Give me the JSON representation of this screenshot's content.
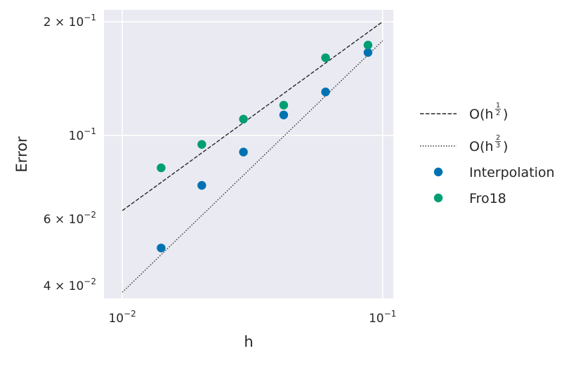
{
  "chart_data": {
    "type": "scatter",
    "xlabel": "h",
    "ylabel": "Error",
    "xscale": "log",
    "yscale": "log",
    "xlim": [
      0.0085,
      0.11
    ],
    "ylim": [
      0.037,
      0.215
    ],
    "grid": true,
    "legend_position": "outside-right",
    "x_ticks": [
      {
        "value": 0.01,
        "base": "10",
        "exp": "−2"
      },
      {
        "value": 0.1,
        "base": "10",
        "exp": "−1"
      }
    ],
    "y_ticks": [
      {
        "value": 0.2,
        "base": "2 × 10",
        "exp": "−1"
      },
      {
        "value": 0.1,
        "base": "10",
        "exp": "−1"
      },
      {
        "value": 0.06,
        "base": "6 × 10",
        "exp": "−2"
      },
      {
        "value": 0.04,
        "base": "4 × 10",
        "exp": "−2"
      }
    ],
    "series": [
      {
        "name": "O(h",
        "exp_num": "1",
        "exp_den": "2",
        "kind": "line",
        "style": "dashed",
        "color": "#262626",
        "x": [
          0.01,
          0.1
        ],
        "y": [
          0.0632,
          0.2
        ]
      },
      {
        "name": "O(h",
        "exp_num": "2",
        "exp_den": "3",
        "kind": "line",
        "style": "dotted",
        "color": "#262626",
        "x": [
          0.01,
          0.1
        ],
        "y": [
          0.0384,
          0.178
        ]
      },
      {
        "name": "Interpolation",
        "kind": "scatter",
        "color": "#0072b2",
        "x": [
          0.0141,
          0.0202,
          0.0292,
          0.0417,
          0.0604,
          0.0879
        ],
        "y": [
          0.0503,
          0.0737,
          0.0903,
          0.1132,
          0.1303,
          0.1657
        ]
      },
      {
        "name": "Fro18",
        "kind": "scatter",
        "color": "#009e73",
        "x": [
          0.0141,
          0.0202,
          0.0292,
          0.0417,
          0.0604,
          0.0879
        ],
        "y": [
          0.082,
          0.0946,
          0.1104,
          0.1202,
          0.1605,
          0.1734
        ]
      }
    ]
  }
}
